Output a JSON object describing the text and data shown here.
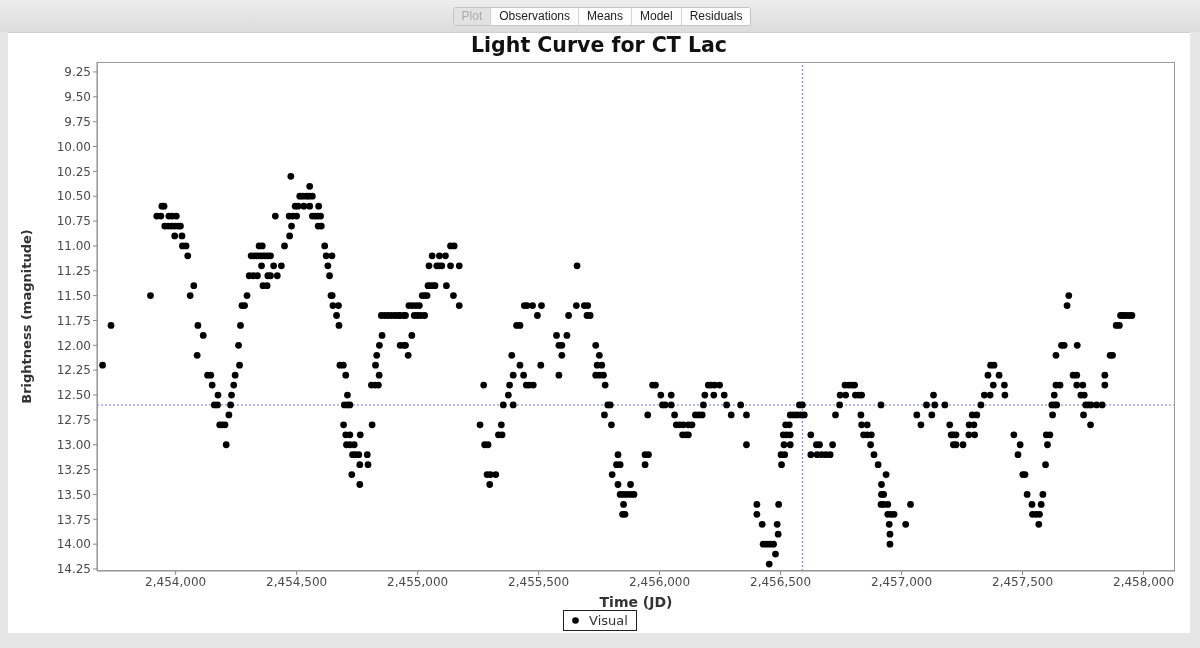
{
  "chart_data": {
    "type": "scatter",
    "title": "Light Curve for CT Lac",
    "xlabel": "Time (JD)",
    "ylabel": "Brightness (magnitude)",
    "annotations": [
      "Plot",
      "Observations",
      "Means",
      "Model",
      "Residuals"
    ],
    "xlim": [
      2453675,
      2458130
    ],
    "xticks": [
      {
        "value": 2454000,
        "label": "2,454,000"
      },
      {
        "value": 2454500,
        "label": "2,454,500"
      },
      {
        "value": 2455000,
        "label": "2,455,000"
      },
      {
        "value": 2455500,
        "label": "2,455,500"
      },
      {
        "value": 2456000,
        "label": "2,456,000"
      },
      {
        "value": 2456500,
        "label": "2,456,500"
      },
      {
        "value": 2457000,
        "label": "2,457,000"
      },
      {
        "value": 2457500,
        "label": "2,457,500"
      },
      {
        "value": 2458000,
        "label": "2,458,000"
      }
    ],
    "ylim": [
      14.27,
      9.15
    ],
    "yticks": [
      9.25,
      {
        "value": 9.5,
        "label": "9.50"
      },
      9.75,
      {
        "value": 10,
        "label": "10.00"
      },
      10.25,
      {
        "value": 10.5,
        "label": "10.50"
      },
      10.75,
      {
        "value": 11,
        "label": "11.00"
      },
      11.25,
      {
        "value": 11.5,
        "label": "11.50"
      },
      11.75,
      {
        "value": 12,
        "label": "12.00"
      },
      12.25,
      {
        "value": 12.5,
        "label": "12.50"
      },
      12.75,
      {
        "value": 13,
        "label": "13.00"
      },
      13.25,
      {
        "value": 13.5,
        "label": "13.50"
      },
      13.75,
      {
        "value": 14,
        "label": "14.00"
      },
      14.25
    ],
    "marker": "circle",
    "legend": "bottom",
    "ref_lines": [
      {
        "axis": "x",
        "value": 2456590,
        "color": "#7777dd",
        "line_style": "dotted"
      },
      {
        "axis": "y",
        "value": 12.6,
        "color": "#7777dd",
        "line_style": "dotted"
      }
    ],
    "x": [
      2453698,
      2453733,
      2453896,
      2453922,
      2453939,
      2453943,
      2453952,
      2453955,
      2453969,
      2453972,
      2453983,
      2453986,
      2453996,
      2453997,
      2454003,
      2454011,
      2454020,
      2454026,
      2454028,
      2454043,
      2454050,
      2454060,
      2454075,
      2454089,
      2454092,
      2454114,
      2454132,
      2454145,
      2454151,
      2454160,
      2454173,
      2454175,
      2454182,
      2454193,
      2454204,
      2454209,
      2454220,
      2454227,
      2454231,
      2454240,
      2454246,
      2454260,
      2454264,
      2454268,
      2454274,
      2454285,
      2454295,
      2454304,
      2454321,
      2454338,
      2454312,
      2454324,
      2454335,
      2454346,
      2454358,
      2454369,
      2454381,
      2454392,
      2454345,
      2454358,
      2454355,
      2454405,
      2454437,
      2454361,
      2454378,
      2454381,
      2454392,
      2454420,
      2454412,
      2454450,
      2454471,
      2454479,
      2454469,
      2454483,
      2454500,
      2454476,
      2454494,
      2454506,
      2454530,
      2454554,
      2454591,
      2454513,
      2454525,
      2454540,
      2454551,
      2454565,
      2454554,
      2454565,
      2454577,
      2454588,
      2454599,
      2454589,
      2454602,
      2454616,
      2454622,
      2454646,
      2454629,
      2454636,
      2454642,
      2454647,
      2454650,
      2454673,
      2454665,
      2454675,
      2454679,
      2454693,
      2454703,
      2454710,
      2454697,
      2454710,
      2454720,
      2454694,
      2454703,
      2454720,
      2454706,
      2454721,
      2454738,
      2454731,
      2454743,
      2454757,
      2454728,
      2454761,
      2454761,
      2454763,
      2454792,
      2454795,
      2454812,
      2454809,
      2454824,
      2454838,
      2454841,
      2454826,
      2454831,
      2454842,
      2454853,
      2454850,
      2454864,
      2454878,
      2454892,
      2454906,
      2454920,
      2454928,
      2454943,
      2454950,
      2454928,
      2454943,
      2454950,
      2454961,
      2454976,
      2454964,
      2454978,
      2454993,
      2455007,
      2454986,
      2455000,
      2455014,
      2455029,
      2455019,
      2455029,
      2455039,
      2455043,
      2455053,
      2455065,
      2455072,
      2455047,
      2455079,
      2455089,
      2455100,
      2455136,
      2455172,
      2455060,
      2455090,
      2455115,
      2455136,
      2455151,
      2455119,
      2455148,
      2455172,
      2455258,
      2455273,
      2455277,
      2455291,
      2455287,
      2455301,
      2455323,
      2455298,
      2455334,
      2455349,
      2455346,
      2455354,
      2455395,
      2455375,
      2455380,
      2455395,
      2455389,
      2455423,
      2455438,
      2455449,
      2455461,
      2455478,
      2455409,
      2455423,
      2455441,
      2455452,
      2455475,
      2455512,
      2455495,
      2455509,
      2455574,
      2455617,
      2455584,
      2455596,
      2455596,
      2455584,
      2455624,
      2455656,
      2455689,
      2455703,
      2455659,
      2455700,
      2455713,
      2455736,
      2455751,
      2455742,
      2455761,
      2455736,
      2455751,
      2455768,
      2455775,
      2455786,
      2455796,
      2455772,
      2455801,
      2455804,
      2455828,
      2455822,
      2455837,
      2455828,
      2455837,
      2455851,
      2455865,
      2455880,
      2455894,
      2455880,
      2455851,
      2455847,
      2455857,
      2455940,
      2455940,
      2455954,
      2455951,
      2455971,
      2455983,
      2456005,
      2456048,
      2456012,
      2456023,
      2456048,
      2456062,
      2456069,
      2456083,
      2456098,
      2456119,
      2456134,
      2456095,
      2456109,
      2456119,
      2456148,
      2456162,
      2456176,
      2456181,
      2456187,
      2456224,
      2456267,
      2456201,
      2456212,
      2456227,
      2456248,
      2456277,
      2456335,
      2456296,
      2456359,
      2456359,
      2456402,
      2456492,
      2456402,
      2456424,
      2456486,
      2456428,
      2456442,
      2456457,
      2456471,
      2456490,
      2456479,
      2456453,
      2456504,
      2456502,
      2456517,
      2456514,
      2456540,
      2456511,
      2456525,
      2456540,
      2456521,
      2456536,
      2456540,
      2456554,
      2456568,
      2456583,
      2456598,
      2456578,
      2456590,
      2456625,
      2456625,
      2456648,
      2456661,
      2456715,
      2456651,
      2456670,
      2456687,
      2456705,
      2456727,
      2456744,
      2456746,
      2456769,
      2456766,
      2456781,
      2456795,
      2456806,
      2456809,
      2456823,
      2456835,
      2456832,
      2456835,
      2456858,
      2456843,
      2456858,
      2456875,
      2456872,
      2456886,
      2456903,
      2456936,
      2456917,
      2456917,
      2456926,
      2456915,
      2456926,
      2456943,
      2456943,
      2456957,
      2456969,
      2456949,
      2456952,
      2456952,
      2456915,
      2457017,
      2457037,
      2457063,
      2457080,
      2457103,
      2457137,
      2457179,
      2457132,
      2457125,
      2457199,
      2457205,
      2457214,
      2457225,
      2457214,
      2457225,
      2457254,
      2457278,
      2457302,
      2457279,
      2457299,
      2457292,
      2457311,
      2457328,
      2457342,
      2457366,
      2457357,
      2457403,
      2457368,
      2457382,
      2457379,
      2457425,
      2457427,
      2457464,
      2457490,
      2457481,
      2457501,
      2457510,
      2457519,
      2457584,
      2457539,
      2457577,
      2457541,
      2457556,
      2457570,
      2457567,
      2457595,
      2457603,
      2457598,
      2457613,
      2457624,
      2457621,
      2457632,
      2457641,
      2457631,
      2457638,
      2457655,
      2457638,
      2457661,
      2457672,
      2457684,
      2457691,
      2457726,
      2457709,
      2457724,
      2457724,
      2457749,
      2457741,
      2457755,
      2457761,
      2457772,
      2457783,
      2457752,
      2457781,
      2457806,
      2457829,
      2457840,
      2457840,
      2457862,
      2457872,
      2457887,
      2457900,
      2457905,
      2457916,
      2457927,
      2457940,
      2457952
    ],
    "series": [
      {
        "name": "Visual",
        "color": "#000000",
        "values": [
          12.2,
          11.8,
          11.5,
          10.7,
          10.7,
          10.6,
          10.6,
          10.8,
          10.8,
          10.7,
          10.8,
          10.7,
          10.9,
          10.8,
          10.7,
          10.8,
          10.8,
          10.9,
          11.0,
          11.0,
          11.1,
          11.5,
          11.4,
          12.1,
          11.8,
          11.9,
          12.3,
          12.3,
          12.4,
          12.6,
          12.6,
          12.5,
          12.8,
          12.8,
          12.8,
          13.0,
          12.7,
          12.6,
          12.5,
          12.4,
          12.3,
          12.0,
          12.2,
          11.8,
          11.6,
          11.6,
          11.5,
          11.3,
          11.3,
          11.3,
          11.1,
          11.1,
          11.1,
          11.1,
          11.1,
          11.1,
          11.1,
          11.1,
          11.0,
          11.0,
          11.2,
          11.2,
          11.2,
          11.4,
          11.4,
          11.3,
          11.3,
          11.3,
          10.7,
          11.0,
          10.9,
          10.8,
          10.7,
          10.7,
          10.7,
          10.3,
          10.6,
          10.6,
          10.6,
          10.6,
          10.6,
          10.5,
          10.5,
          10.5,
          10.5,
          10.5,
          10.4,
          10.7,
          10.7,
          10.7,
          10.7,
          10.8,
          10.8,
          11.0,
          11.1,
          11.1,
          11.2,
          11.3,
          11.5,
          11.5,
          11.6,
          11.6,
          11.7,
          11.8,
          12.2,
          12.2,
          12.3,
          12.5,
          12.6,
          12.6,
          12.6,
          12.8,
          12.9,
          12.9,
          13.0,
          13.0,
          13.0,
          13.1,
          13.1,
          13.1,
          13.3,
          13.2,
          13.4,
          12.9,
          13.1,
          13.2,
          12.8,
          12.4,
          12.4,
          12.4,
          12.3,
          12.2,
          12.1,
          12.0,
          11.9,
          11.7,
          11.7,
          11.7,
          11.7,
          11.7,
          11.7,
          11.7,
          11.7,
          11.7,
          12.0,
          12.0,
          12.0,
          12.1,
          11.9,
          11.6,
          11.6,
          11.6,
          11.6,
          11.7,
          11.7,
          11.7,
          11.7,
          11.5,
          11.5,
          11.5,
          11.4,
          11.4,
          11.4,
          11.4,
          11.2,
          11.2,
          11.2,
          11.2,
          11.2,
          11.2,
          11.1,
          11.1,
          11.1,
          11.0,
          11.0,
          11.4,
          11.5,
          11.6,
          12.8,
          12.4,
          13.0,
          13.0,
          13.3,
          13.3,
          13.3,
          13.4,
          12.9,
          12.9,
          12.8,
          12.6,
          12.6,
          12.5,
          12.4,
          12.3,
          12.1,
          12.2,
          12.3,
          12.4,
          12.4,
          12.4,
          11.8,
          11.8,
          11.6,
          11.6,
          11.6,
          11.6,
          11.7,
          12.2,
          11.9,
          11.9,
          12.0,
          12.0,
          12.1,
          12.3,
          11.7,
          11.6,
          11.6,
          11.6,
          11.2,
          11.7,
          11.7,
          12.0,
          12.1,
          12.2,
          12.2,
          12.3,
          12.3,
          12.3,
          12.4,
          12.6,
          12.6,
          12.7,
          12.8,
          13.3,
          13.1,
          13.2,
          13.2,
          13.4,
          13.5,
          13.5,
          13.5,
          13.5,
          13.5,
          13.4,
          13.6,
          13.7,
          13.7,
          13.2,
          13.1,
          13.1,
          12.7,
          12.4,
          12.4,
          12.5,
          12.5,
          12.6,
          12.6,
          12.6,
          12.7,
          12.8,
          12.8,
          12.8,
          12.8,
          12.8,
          12.9,
          12.9,
          12.9,
          12.7,
          12.7,
          12.7,
          12.6,
          12.5,
          12.5,
          12.5,
          12.4,
          12.4,
          12.4,
          12.4,
          12.6,
          12.6,
          12.7,
          12.7,
          13.0,
          13.6,
          13.6,
          13.7,
          13.8,
          13.8,
          14.0,
          14.0,
          14.0,
          14.0,
          13.9,
          14.1,
          14.2,
          13.2,
          13.1,
          13.1,
          13.0,
          13.0,
          12.9,
          12.9,
          12.9,
          12.8,
          12.8,
          12.7,
          12.7,
          12.7,
          12.7,
          12.7,
          12.6,
          12.6,
          12.9,
          13.1,
          13.0,
          13.0,
          13.0,
          13.1,
          13.1,
          13.1,
          13.1,
          12.7,
          12.6,
          12.5,
          12.5,
          12.4,
          12.4,
          12.4,
          12.4,
          12.5,
          12.5,
          12.5,
          12.7,
          12.8,
          12.8,
          12.9,
          12.9,
          12.9,
          13.0,
          13.1,
          13.2,
          13.3,
          13.4,
          13.5,
          13.5,
          13.6,
          13.6,
          13.6,
          13.7,
          13.7,
          13.7,
          13.8,
          13.9,
          14.0,
          12.6,
          13.8,
          13.6,
          12.7,
          12.8,
          12.6,
          12.6,
          12.6,
          12.5,
          12.7,
          12.8,
          12.9,
          12.9,
          12.9,
          13.0,
          13.0,
          13.0,
          12.9,
          12.9,
          12.8,
          12.8,
          12.7,
          12.7,
          12.6,
          12.5,
          12.5,
          12.3,
          12.3,
          12.2,
          12.2,
          12.4,
          12.4,
          12.5,
          12.9,
          13.0,
          13.1,
          13.3,
          13.3,
          13.5,
          13.5,
          13.6,
          13.6,
          13.7,
          13.7,
          13.7,
          13.8,
          13.2,
          13.0,
          12.9,
          12.9,
          12.7,
          12.6,
          12.6,
          12.6,
          12.5,
          12.4,
          12.4,
          12.1,
          12.0,
          12.0,
          11.6,
          11.5,
          12.0,
          12.3,
          12.3,
          12.4,
          12.4,
          12.5,
          12.5,
          12.6,
          12.6,
          12.6,
          12.7,
          12.8,
          12.6,
          12.6,
          12.4,
          12.3,
          12.1,
          12.1,
          11.8,
          11.8,
          11.7,
          11.7,
          11.7,
          11.7,
          11.7
        ]
      }
    ]
  }
}
